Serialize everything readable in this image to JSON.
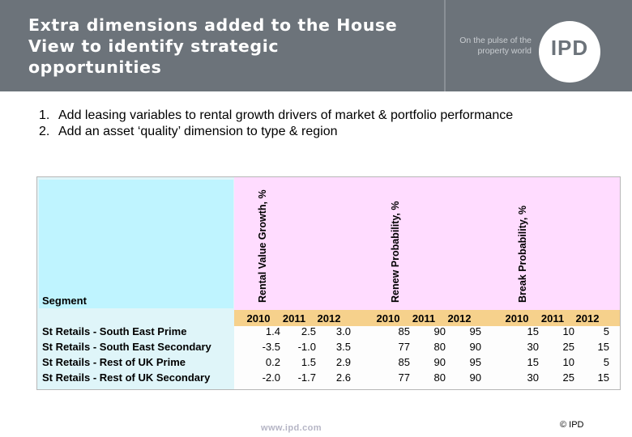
{
  "header": {
    "title": "Extra dimensions added to the House View to identify strategic opportunities",
    "tagline": "On the pulse of the property world",
    "logo": "IPD"
  },
  "bullets": [
    {
      "num": "1.",
      "text": "Add leasing variables to rental growth drivers of market & portfolio performance"
    },
    {
      "num": "2.",
      "text": "Add an asset ‘quality’ dimension to type & region"
    }
  ],
  "table": {
    "segment_label": "Segment",
    "groups": [
      "Rental Value Growth, %",
      "Renew Probability, %",
      "Break Probability, %"
    ],
    "years": [
      "2010",
      "2011",
      "2012",
      "2010",
      "2011",
      "2012",
      "2010",
      "2011",
      "2012"
    ],
    "rows": [
      {
        "label": "St Retails - South East Prime",
        "values": [
          "1.4",
          "2.5",
          "3.0",
          "85",
          "90",
          "95",
          "15",
          "10",
          "5"
        ]
      },
      {
        "label": "St Retails - South East Secondary",
        "values": [
          "-3.5",
          "-1.0",
          "3.5",
          "77",
          "80",
          "90",
          "30",
          "25",
          "15"
        ]
      },
      {
        "label": "St Retails - Rest of UK Prime",
        "values": [
          "0.2",
          "1.5",
          "2.9",
          "85",
          "90",
          "95",
          "15",
          "10",
          "5"
        ]
      },
      {
        "label": "St Retails - Rest of UK Secondary",
        "values": [
          "-2.0",
          "-1.7",
          "2.6",
          "77",
          "80",
          "90",
          "30",
          "25",
          "15"
        ]
      }
    ]
  },
  "footer": {
    "url": "www.ipd.com",
    "copyright": "© IPD"
  },
  "colors": {
    "header_bg": "#6c737a",
    "segment_bg": "#bff4ff",
    "group_bg": "#ffdcff",
    "year_band": "#f6d18c"
  }
}
